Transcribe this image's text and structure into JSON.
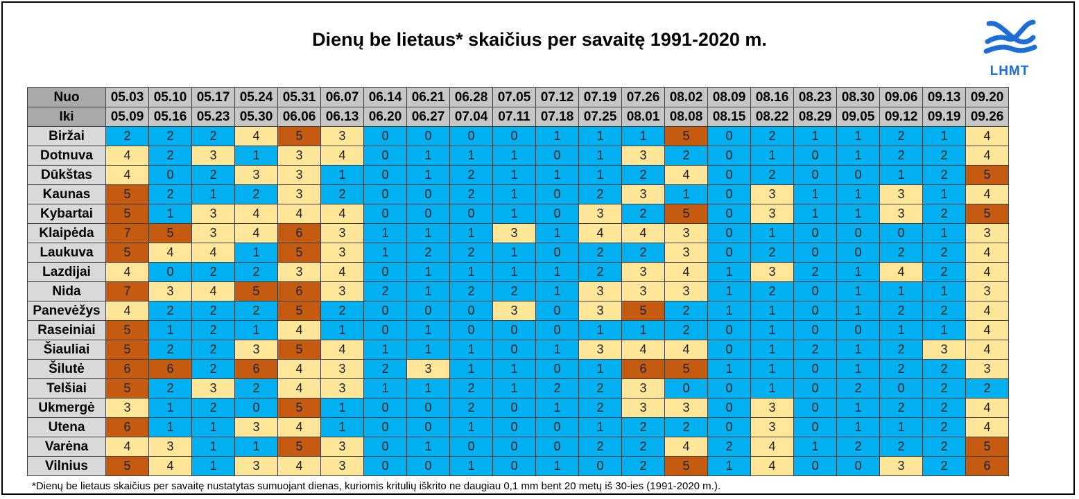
{
  "title": "Dienų be lietaus* skaičius per savaitę 1991-2020 m.",
  "logo_text": "LHMT",
  "footnote": "*Dienų be lietaus skaičius per savaitę nustatytas sumuojant dienas, kuriomis kritulių iškrito ne daugiau 0,1 mm bent 20 metų iš 30-ies (1991-2020 m.).",
  "colors": {
    "blue": "#00b0f0",
    "yellow": "#ffe699",
    "orange": "#c55a11",
    "header_bg": "#c6c6c6",
    "label_bg": "#d9d9d9",
    "logo_blue": "#1c6ed6"
  },
  "color_rule": "values 0-2 blue, 3-4 yellow, 5-7 orange",
  "chart_data": {
    "type": "table",
    "title": "Dienų be lietaus* skaičius per savaitę 1991-2020 m.",
    "header_labels": {
      "from": "Nuo",
      "to": "Iki"
    },
    "weeks_from": [
      "05.03",
      "05.10",
      "05.17",
      "05.24",
      "05.31",
      "06.07",
      "06.14",
      "06.21",
      "06.28",
      "07.05",
      "07.12",
      "07.19",
      "07.26",
      "08.02",
      "08.09",
      "08.16",
      "08.23",
      "08.30",
      "09.06",
      "09.13",
      "09.20"
    ],
    "weeks_to": [
      "05.09",
      "05.16",
      "05.23",
      "05.30",
      "06.06",
      "06.13",
      "06.20",
      "06.27",
      "07.04",
      "07.11",
      "07.18",
      "07.25",
      "08.01",
      "08.08",
      "08.15",
      "08.22",
      "08.29",
      "09.05",
      "09.12",
      "09.19",
      "09.26"
    ],
    "rows": [
      {
        "station": "Biržai",
        "values": [
          2,
          2,
          2,
          4,
          5,
          3,
          0,
          0,
          0,
          0,
          1,
          1,
          1,
          5,
          0,
          2,
          1,
          1,
          2,
          1,
          4
        ]
      },
      {
        "station": "Dotnuva",
        "values": [
          4,
          2,
          3,
          1,
          3,
          4,
          0,
          1,
          1,
          1,
          0,
          1,
          3,
          2,
          0,
          1,
          0,
          1,
          2,
          2,
          4
        ]
      },
      {
        "station": "Dūkštas",
        "values": [
          4,
          0,
          2,
          3,
          3,
          1,
          0,
          1,
          2,
          1,
          1,
          1,
          2,
          4,
          0,
          2,
          0,
          0,
          1,
          2,
          5
        ]
      },
      {
        "station": "Kaunas",
        "values": [
          5,
          2,
          1,
          2,
          3,
          2,
          0,
          0,
          2,
          1,
          0,
          2,
          3,
          1,
          0,
          3,
          1,
          1,
          3,
          1,
          4
        ]
      },
      {
        "station": "Kybartai",
        "values": [
          5,
          1,
          3,
          4,
          4,
          4,
          0,
          0,
          0,
          1,
          0,
          3,
          2,
          5,
          0,
          3,
          1,
          1,
          3,
          2,
          5
        ]
      },
      {
        "station": "Klaipėda",
        "values": [
          7,
          5,
          3,
          4,
          6,
          3,
          1,
          1,
          1,
          3,
          1,
          4,
          4,
          3,
          0,
          1,
          0,
          0,
          0,
          1,
          3
        ]
      },
      {
        "station": "Laukuva",
        "values": [
          5,
          4,
          4,
          1,
          5,
          3,
          1,
          2,
          2,
          1,
          0,
          2,
          2,
          3,
          0,
          2,
          0,
          0,
          2,
          2,
          4
        ]
      },
      {
        "station": "Lazdijai",
        "values": [
          4,
          0,
          2,
          2,
          3,
          4,
          0,
          1,
          1,
          1,
          1,
          2,
          3,
          4,
          1,
          3,
          2,
          1,
          4,
          2,
          4
        ]
      },
      {
        "station": "Nida",
        "values": [
          7,
          3,
          4,
          5,
          6,
          3,
          2,
          1,
          2,
          2,
          1,
          3,
          3,
          3,
          1,
          2,
          0,
          1,
          1,
          1,
          3
        ]
      },
      {
        "station": "Panevėžys",
        "values": [
          4,
          2,
          2,
          2,
          5,
          2,
          0,
          0,
          0,
          3,
          0,
          3,
          5,
          2,
          1,
          1,
          0,
          1,
          2,
          2,
          4
        ]
      },
      {
        "station": "Raseiniai",
        "values": [
          5,
          1,
          2,
          1,
          4,
          1,
          0,
          1,
          0,
          0,
          0,
          1,
          1,
          2,
          0,
          1,
          0,
          0,
          1,
          1,
          4
        ]
      },
      {
        "station": "Šiauliai",
        "values": [
          5,
          2,
          2,
          3,
          5,
          4,
          1,
          1,
          1,
          0,
          1,
          3,
          4,
          4,
          0,
          1,
          2,
          1,
          2,
          3,
          4
        ]
      },
      {
        "station": "Šilutė",
        "values": [
          6,
          6,
          2,
          6,
          4,
          3,
          2,
          3,
          1,
          1,
          0,
          1,
          6,
          5,
          1,
          1,
          0,
          1,
          2,
          2,
          3
        ]
      },
      {
        "station": "Telšiai",
        "values": [
          5,
          2,
          3,
          2,
          4,
          3,
          1,
          1,
          2,
          1,
          2,
          2,
          3,
          0,
          0,
          1,
          0,
          2,
          0,
          2,
          2
        ]
      },
      {
        "station": "Ukmergė",
        "values": [
          3,
          1,
          2,
          0,
          5,
          1,
          0,
          0,
          2,
          0,
          1,
          2,
          3,
          3,
          0,
          3,
          0,
          1,
          2,
          2,
          4
        ]
      },
      {
        "station": "Utena",
        "values": [
          6,
          1,
          1,
          3,
          4,
          1,
          0,
          0,
          1,
          0,
          0,
          1,
          2,
          2,
          0,
          3,
          0,
          1,
          1,
          2,
          4
        ]
      },
      {
        "station": "Varėna",
        "values": [
          4,
          3,
          1,
          1,
          5,
          3,
          0,
          1,
          0,
          0,
          0,
          2,
          2,
          4,
          2,
          4,
          1,
          2,
          2,
          2,
          5
        ]
      },
      {
        "station": "Vilnius",
        "values": [
          5,
          4,
          1,
          3,
          4,
          3,
          0,
          0,
          1,
          0,
          1,
          0,
          2,
          5,
          1,
          4,
          0,
          0,
          3,
          2,
          6
        ]
      }
    ]
  }
}
